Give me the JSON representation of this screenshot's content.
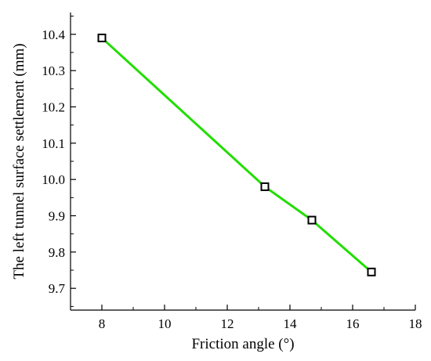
{
  "chart_data": {
    "type": "line",
    "title": "",
    "xlabel": "Friction angle (°)",
    "ylabel": "The left tunnel surface settlement (mm)",
    "xlim": [
      7,
      18
    ],
    "ylim": [
      9.64,
      10.46
    ],
    "xticks": [
      8,
      10,
      12,
      14,
      16,
      18
    ],
    "yticks": [
      9.7,
      9.8,
      9.9,
      10.0,
      10.1,
      10.2,
      10.3,
      10.4
    ],
    "xtick_labels": [
      "8",
      "10",
      "12",
      "14",
      "16",
      "18"
    ],
    "ytick_labels": [
      "9.7",
      "9.8",
      "9.9",
      "10.0",
      "10.1",
      "10.2",
      "10.3",
      "10.4"
    ],
    "grid": false,
    "legend": "none",
    "series": [
      {
        "color": "#22dd00",
        "marker": "hollow-square",
        "marker_color": "#000000",
        "x": [
          8,
          13.2,
          14.7,
          16.6
        ],
        "y": [
          10.39,
          9.98,
          9.888,
          9.745
        ]
      }
    ]
  }
}
